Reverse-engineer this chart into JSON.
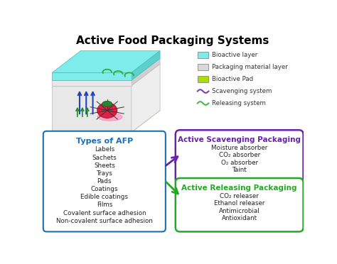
{
  "title": "Active Food Packaging Systems",
  "title_fontsize": 11,
  "legend_items": [
    {
      "label": "Bioactive layer",
      "color": "#7EECEA",
      "type": "rect"
    },
    {
      "label": "Packaging material layer",
      "color": "#D8D8D8",
      "type": "rect"
    },
    {
      "label": "Bioactive Pad",
      "color": "#AADD00",
      "type": "rect"
    },
    {
      "label": "Scavenging system",
      "color": "#7744AA",
      "type": "wave"
    },
    {
      "label": "Releasing system",
      "color": "#44BB44",
      "type": "wave"
    }
  ],
  "left_box": {
    "title": "Types of AFP",
    "title_color": "#1a6eb5",
    "border_color": "#1a6eb5",
    "items": [
      "Labels",
      "Sachets",
      "Sheets",
      "Trays",
      "Pads",
      "Coatings",
      "Edible coatings",
      "Films",
      "Covalent surface adhesion",
      "Non-covalent surface adhesion"
    ]
  },
  "top_right_box": {
    "title": "Active Scavenging Packaging",
    "title_color": "#6622AA",
    "border_color": "#6622AA",
    "items": [
      "Moisture absorber",
      "CO₂ absorber",
      "O₂ absorber",
      "Taint"
    ]
  },
  "bottom_right_box": {
    "title": "Active Releasing Packaging",
    "title_color": "#22AA22",
    "border_color": "#22AA22",
    "items": [
      "CO₂ releaser",
      "Ethanol releaser",
      "Antimicrobial",
      "Antioxidant"
    ]
  },
  "arrow_up_color": "#6622AA",
  "arrow_down_color": "#22AA22",
  "background_color": "#ffffff",
  "illustration": {
    "floor_color": "#CCDD88",
    "top_color": "#7EECEA",
    "wall_color": "#E8E8E8",
    "wall_edge": "#C8C8C8"
  }
}
